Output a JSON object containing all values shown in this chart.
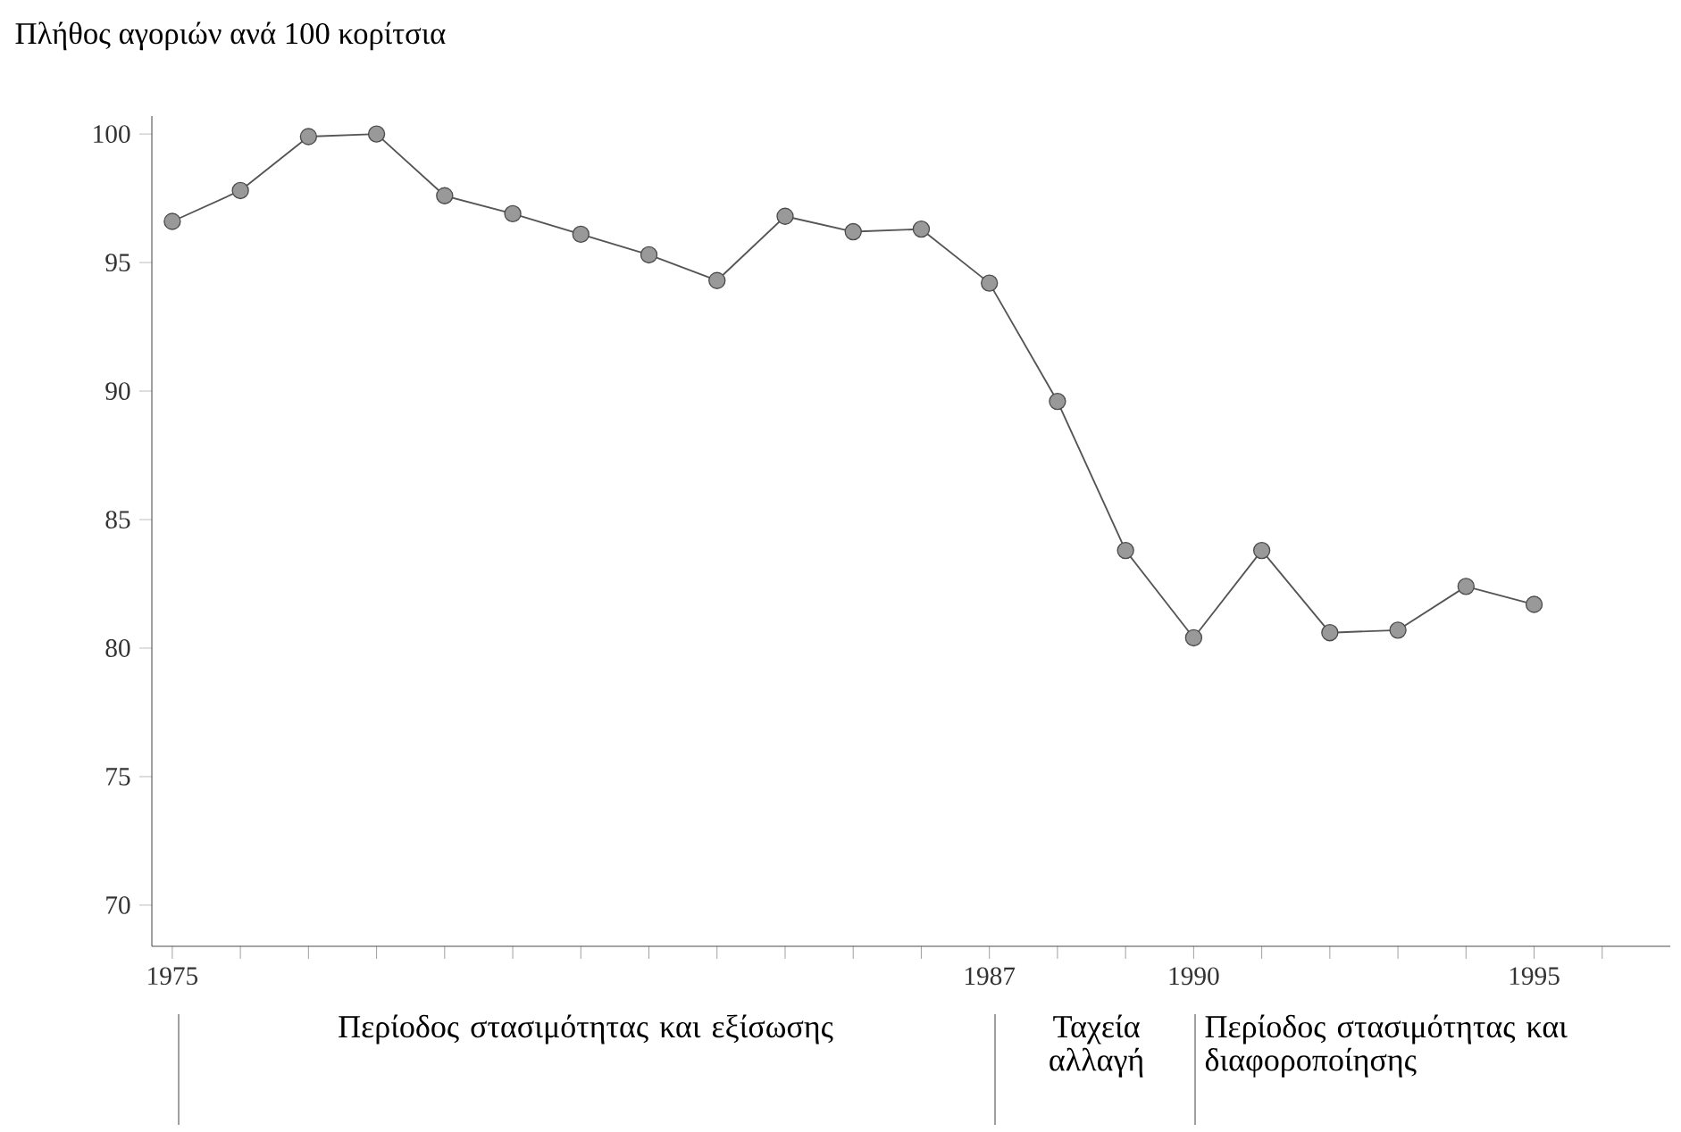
{
  "chart_data": {
    "type": "line",
    "title": "Πλήθος αγοριών ανά 100 κορίτσια",
    "x": [
      1975,
      1976,
      1977,
      1978,
      1979,
      1980,
      1981,
      1982,
      1983,
      1984,
      1985,
      1986,
      1987,
      1988,
      1989,
      1990,
      1991,
      1992,
      1993,
      1994,
      1995
    ],
    "series": [
      {
        "color": "#555555",
        "values": [
          96.6,
          97.8,
          99.9,
          100.0,
          97.6,
          96.9,
          96.1,
          95.3,
          94.3,
          96.8,
          96.2,
          96.3,
          94.2,
          89.6,
          83.8,
          80.4,
          83.8,
          80.6,
          80.7,
          82.4,
          81.7
        ]
      }
    ],
    "marker": "circle",
    "line_style": "solid",
    "xlim": [
      1974.7,
      1997
    ],
    "xticks": [
      {
        "value": 1975,
        "label": "1975"
      },
      {
        "value": 1976,
        "label": null
      },
      {
        "value": 1977,
        "label": null
      },
      {
        "value": 1978,
        "label": null
      },
      {
        "value": 1979,
        "label": null
      },
      {
        "value": 1980,
        "label": null
      },
      {
        "value": 1981,
        "label": null
      },
      {
        "value": 1982,
        "label": null
      },
      {
        "value": 1983,
        "label": null
      },
      {
        "value": 1984,
        "label": null
      },
      {
        "value": 1985,
        "label": null
      },
      {
        "value": 1986,
        "label": null
      },
      {
        "value": 1987,
        "label": "1987"
      },
      {
        "value": 1988,
        "label": null
      },
      {
        "value": 1989,
        "label": null
      },
      {
        "value": 1990,
        "label": "1990"
      },
      {
        "value": 1991,
        "label": null
      },
      {
        "value": 1992,
        "label": null
      },
      {
        "value": 1993,
        "label": null
      },
      {
        "value": 1994,
        "label": null
      },
      {
        "value": 1995,
        "label": "1995"
      },
      {
        "value": 1996,
        "label": null
      }
    ],
    "ylim": [
      68.4,
      100.7
    ],
    "yticks": [
      70,
      75,
      80,
      85,
      90,
      95,
      100
    ],
    "annotations": [
      "Περίοδος στασιμότητας και εξίσωσης",
      "Ταχεία αλλαγή",
      "Περίοδος στασιμότητας και διαφοροποίησης"
    ]
  }
}
